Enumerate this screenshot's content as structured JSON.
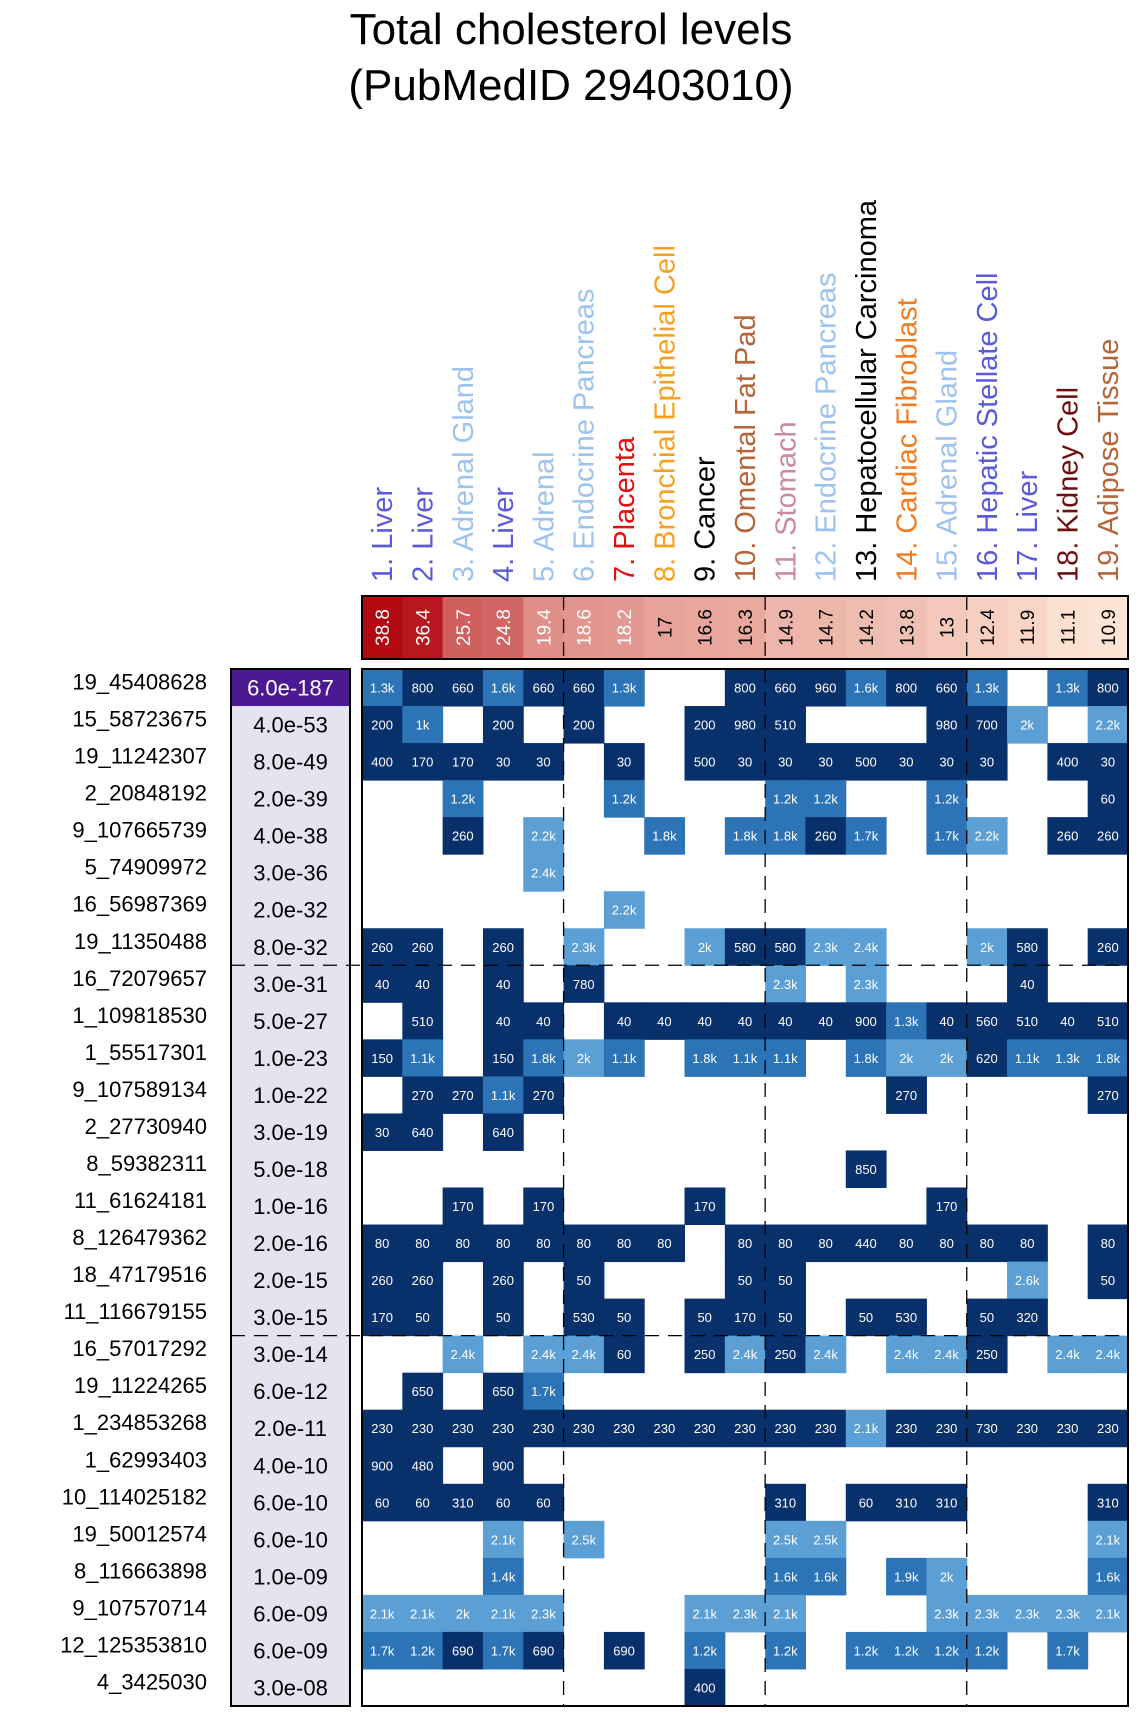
{
  "title": [
    "Total cholesterol levels",
    "(PubMedID 29403010)"
  ],
  "chart_data": {
    "type": "heatmap",
    "columns": [
      {
        "label": "1. Liver",
        "color": "#5b5bd9",
        "enrichment": "38.8"
      },
      {
        "label": "2. Liver",
        "color": "#5b5bd9",
        "enrichment": "36.4"
      },
      {
        "label": "3. Adrenal Gland",
        "color": "#9ec2ee",
        "enrichment": "25.7"
      },
      {
        "label": "4. Liver",
        "color": "#5b5bd9",
        "enrichment": "24.8"
      },
      {
        "label": "5. Adrenal",
        "color": "#9ec2ee",
        "enrichment": "19.4"
      },
      {
        "label": "6. Endocrine Pancreas",
        "color": "#9ec2ee",
        "enrichment": "18.6"
      },
      {
        "label": "7. Placenta",
        "color": "#e31010",
        "enrichment": "18.2"
      },
      {
        "label": "8. Bronchial Epithelial Cell",
        "color": "#f5a020",
        "enrichment": "17"
      },
      {
        "label": "9. Cancer",
        "color": "#000000",
        "enrichment": "16.6"
      },
      {
        "label": "10. Omental Fat Pad",
        "color": "#b5653a",
        "enrichment": "16.3"
      },
      {
        "label": "11. Stomach",
        "color": "#c98aa5",
        "enrichment": "14.9"
      },
      {
        "label": "12. Endocrine Pancreas",
        "color": "#9ec2ee",
        "enrichment": "14.7"
      },
      {
        "label": "13. Hepatocellular Carcinoma",
        "color": "#000000",
        "enrichment": "14.2"
      },
      {
        "label": "14. Cardiac Fibroblast",
        "color": "#f07a20",
        "enrichment": "13.8"
      },
      {
        "label": "15. Adrenal Gland",
        "color": "#9ec2ee",
        "enrichment": "13"
      },
      {
        "label": "16. Hepatic Stellate Cell",
        "color": "#5b5bd9",
        "enrichment": "12.4"
      },
      {
        "label": "17. Liver",
        "color": "#5b5bd9",
        "enrichment": "11.9"
      },
      {
        "label": "18. Kidney Cell",
        "color": "#6b0f0f",
        "enrichment": "11.1"
      },
      {
        "label": "19. Adipose Tissue",
        "color": "#b5653a",
        "enrichment": "10.9"
      }
    ],
    "rows": [
      {
        "label": "19_45408628",
        "pvalue": "6.0e-187",
        "cells": [
          "1.3k",
          "800",
          "660",
          "1.6k",
          "660",
          "660",
          "1.3k",
          "",
          "",
          "800",
          "660",
          "960",
          "1.6k",
          "800",
          "660",
          "1.3k",
          "",
          "1.3k",
          "800"
        ]
      },
      {
        "label": "15_58723675",
        "pvalue": "4.0e-53",
        "cells": [
          "200",
          "1k",
          "",
          "200",
          "",
          "200",
          "",
          "",
          "200",
          "980",
          "510",
          "",
          "",
          "",
          "980",
          "700",
          "2k",
          "",
          "2.2k"
        ]
      },
      {
        "label": "19_11242307",
        "pvalue": "8.0e-49",
        "cells": [
          "400",
          "170",
          "170",
          "30",
          "30",
          "",
          "30",
          "",
          "500",
          "30",
          "30",
          "30",
          "500",
          "30",
          "30",
          "30",
          "",
          "400",
          "30"
        ]
      },
      {
        "label": "2_20848192",
        "pvalue": "2.0e-39",
        "cells": [
          "",
          "",
          "1.2k",
          "",
          "",
          "",
          "1.2k",
          "",
          "",
          "",
          "1.2k",
          "1.2k",
          "",
          "",
          "1.2k",
          "",
          "",
          "",
          "60"
        ]
      },
      {
        "label": "9_107665739",
        "pvalue": "4.0e-38",
        "cells": [
          "",
          "",
          "260",
          "",
          "2.2k",
          "",
          "",
          "1.8k",
          "",
          "1.8k",
          "1.8k",
          "260",
          "1.7k",
          "",
          "1.7k",
          "2.2k",
          "",
          "260",
          "260"
        ]
      },
      {
        "label": "5_74909972",
        "pvalue": "3.0e-36",
        "cells": [
          "",
          "",
          "",
          "",
          "2.4k",
          "",
          "",
          "",
          "",
          "",
          "",
          "",
          "",
          "",
          "",
          "",
          "",
          "",
          ""
        ]
      },
      {
        "label": "16_56987369",
        "pvalue": "2.0e-32",
        "cells": [
          "",
          "",
          "",
          "",
          "",
          "",
          "2.2k",
          "",
          "",
          "",
          "",
          "",
          "",
          "",
          "",
          "",
          "",
          "",
          ""
        ]
      },
      {
        "label": "19_11350488",
        "pvalue": "8.0e-32",
        "cells": [
          "260",
          "260",
          "",
          "260",
          "",
          "2.3k",
          "",
          "",
          "2k",
          "580",
          "580",
          "2.3k",
          "2.4k",
          "",
          "",
          "2k",
          "580",
          "",
          "260"
        ]
      },
      {
        "label": "16_72079657",
        "pvalue": "3.0e-31",
        "cells": [
          "40",
          "40",
          "",
          "40",
          "",
          "780",
          "",
          "",
          "",
          "",
          "2.3k",
          "",
          "2.3k",
          "",
          "",
          "",
          "40",
          "",
          ""
        ]
      },
      {
        "label": "1_109818530",
        "pvalue": "5.0e-27",
        "cells": [
          "",
          "510",
          "",
          "40",
          "40",
          "",
          "40",
          "40",
          "40",
          "40",
          "40",
          "40",
          "900",
          "1.3k",
          "40",
          "560",
          "510",
          "40",
          "510"
        ]
      },
      {
        "label": "1_55517301",
        "pvalue": "1.0e-23",
        "cells": [
          "150",
          "1.1k",
          "",
          "150",
          "1.8k",
          "2k",
          "1.1k",
          "",
          "1.8k",
          "1.1k",
          "1.1k",
          "",
          "1.8k",
          "2k",
          "2k",
          "620",
          "1.1k",
          "1.3k",
          "1.8k"
        ]
      },
      {
        "label": "9_107589134",
        "pvalue": "1.0e-22",
        "cells": [
          "",
          "270",
          "270",
          "1.1k",
          "270",
          "",
          "",
          "",
          "",
          "",
          "",
          "",
          "",
          "270",
          "",
          "",
          "",
          "",
          "270"
        ]
      },
      {
        "label": "2_27730940",
        "pvalue": "3.0e-19",
        "cells": [
          "30",
          "640",
          "",
          "640",
          "",
          "",
          "",
          "",
          "",
          "",
          "",
          "",
          "",
          "",
          "",
          "",
          "",
          "",
          ""
        ]
      },
      {
        "label": "8_59382311",
        "pvalue": "5.0e-18",
        "cells": [
          "",
          "",
          "",
          "",
          "",
          "",
          "",
          "",
          "",
          "",
          "",
          "",
          "850",
          "",
          "",
          "",
          "",
          "",
          ""
        ]
      },
      {
        "label": "11_61624181",
        "pvalue": "1.0e-16",
        "cells": [
          "",
          "",
          "170",
          "",
          "170",
          "",
          "",
          "",
          "170",
          "",
          "",
          "",
          "",
          "",
          "170",
          "",
          "",
          "",
          ""
        ]
      },
      {
        "label": "8_126479362",
        "pvalue": "2.0e-16",
        "cells": [
          "80",
          "80",
          "80",
          "80",
          "80",
          "80",
          "80",
          "80",
          "",
          "80",
          "80",
          "80",
          "440",
          "80",
          "80",
          "80",
          "80",
          "",
          "80"
        ]
      },
      {
        "label": "18_47179516",
        "pvalue": "2.0e-15",
        "cells": [
          "260",
          "260",
          "",
          "260",
          "",
          "50",
          "",
          "",
          "",
          "50",
          "50",
          "",
          "",
          "",
          "",
          "",
          "2.6k",
          "",
          "50"
        ]
      },
      {
        "label": "11_116679155",
        "pvalue": "3.0e-15",
        "cells": [
          "170",
          "50",
          "",
          "50",
          "",
          "530",
          "50",
          "",
          "50",
          "170",
          "50",
          "",
          "50",
          "530",
          "",
          "50",
          "320",
          "",
          ""
        ]
      },
      {
        "label": "16_57017292",
        "pvalue": "3.0e-14",
        "cells": [
          "",
          "",
          "2.4k",
          "",
          "2.4k",
          "2.4k",
          "60",
          "",
          "250",
          "2.4k",
          "250",
          "2.4k",
          "",
          "2.4k",
          "2.4k",
          "250",
          "",
          "2.4k",
          "2.4k"
        ]
      },
      {
        "label": "19_11224265",
        "pvalue": "6.0e-12",
        "cells": [
          "",
          "650",
          "",
          "650",
          "1.7k",
          "",
          "",
          "",
          "",
          "",
          "",
          "",
          "",
          "",
          "",
          "",
          "",
          "",
          ""
        ]
      },
      {
        "label": "1_234853268",
        "pvalue": "2.0e-11",
        "cells": [
          "230",
          "230",
          "230",
          "230",
          "230",
          "230",
          "230",
          "230",
          "230",
          "230",
          "230",
          "230",
          "2.1k",
          "230",
          "230",
          "730",
          "230",
          "230",
          "230"
        ]
      },
      {
        "label": "1_62993403",
        "pvalue": "4.0e-10",
        "cells": [
          "900",
          "480",
          "",
          "900",
          "",
          "",
          "",
          "",
          "",
          "",
          "",
          "",
          "",
          "",
          "",
          "",
          "",
          "",
          ""
        ]
      },
      {
        "label": "10_114025182",
        "pvalue": "6.0e-10",
        "cells": [
          "60",
          "60",
          "310",
          "60",
          "60",
          "",
          "",
          "",
          "",
          "",
          "310",
          "",
          "60",
          "310",
          "310",
          "",
          "",
          "",
          "310"
        ]
      },
      {
        "label": "19_50012574",
        "pvalue": "6.0e-10",
        "cells": [
          "",
          "",
          "",
          "2.1k",
          "",
          "2.5k",
          "",
          "",
          "",
          "",
          "2.5k",
          "2.5k",
          "",
          "",
          "",
          "",
          "",
          "",
          "2.1k"
        ]
      },
      {
        "label": "8_116663898",
        "pvalue": "1.0e-09",
        "cells": [
          "",
          "",
          "",
          "1.4k",
          "",
          "",
          "",
          "",
          "",
          "",
          "1.6k",
          "1.6k",
          "",
          "1.9k",
          "2k",
          "",
          "",
          "",
          "1.6k"
        ]
      },
      {
        "label": "9_107570714",
        "pvalue": "6.0e-09",
        "cells": [
          "2.1k",
          "2.1k",
          "2k",
          "2.1k",
          "2.3k",
          "",
          "",
          "",
          "2.1k",
          "2.3k",
          "2.1k",
          "",
          "",
          "",
          "2.3k",
          "2.3k",
          "2.3k",
          "2.3k",
          "2.1k"
        ]
      },
      {
        "label": "12_125353810",
        "pvalue": "6.0e-09",
        "cells": [
          "1.7k",
          "1.2k",
          "690",
          "1.7k",
          "690",
          "",
          "690",
          "",
          "1.2k",
          "",
          "1.2k",
          "",
          "1.2k",
          "1.2k",
          "1.2k",
          "1.2k",
          "",
          "1.7k",
          ""
        ]
      },
      {
        "label": "4_3425030",
        "pvalue": "3.0e-08",
        "cells": [
          "",
          "",
          "",
          "",
          "",
          "",
          "",
          "",
          "400",
          "",
          "",
          "",
          "",
          "",
          "",
          "",
          "",
          "",
          ""
        ]
      }
    ]
  }
}
